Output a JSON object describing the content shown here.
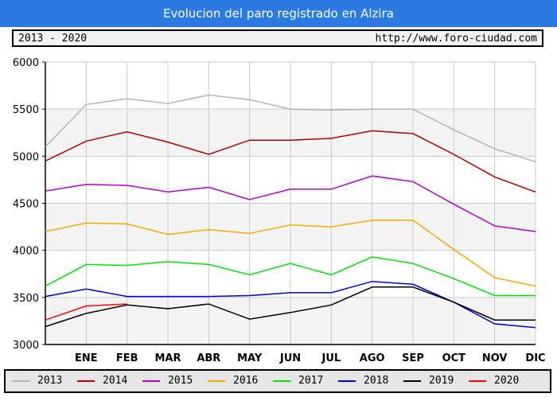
{
  "header": {
    "title": "Evolucion del paro registrado en Alzira",
    "range": "2013 - 2020",
    "url": "http://www.foro-ciudad.com"
  },
  "chart_data": {
    "type": "line",
    "title": "Evolucion del paro registrado en Alzira",
    "categories": [
      "",
      "ENE",
      "FEB",
      "MAR",
      "ABR",
      "MAY",
      "JUN",
      "JUL",
      "AGO",
      "SEP",
      "OCT",
      "NOV",
      "DIC"
    ],
    "ylim": [
      3000,
      6000
    ],
    "yticks": [
      3000,
      3500,
      4000,
      4500,
      5000,
      5500,
      6000
    ],
    "grid": true,
    "legend_position": "bottom",
    "series": [
      {
        "name": "2013",
        "color": "#b4b4b4",
        "values": [
          5100,
          5550,
          5610,
          5560,
          5650,
          5600,
          5500,
          5490,
          5500,
          5500,
          5280,
          5080,
          4940
        ]
      },
      {
        "name": "2014",
        "color": "#b00000",
        "values": [
          4950,
          5160,
          5260,
          5150,
          5020,
          5170,
          5170,
          5190,
          5270,
          5240,
          5020,
          4780,
          4620
        ]
      },
      {
        "name": "2015",
        "color": "#b400d2",
        "values": [
          4630,
          4700,
          4690,
          4620,
          4670,
          4540,
          4650,
          4650,
          4790,
          4730,
          4490,
          4260,
          4200
        ]
      },
      {
        "name": "2016",
        "color": "#ffa500",
        "values": [
          4200,
          4290,
          4280,
          4170,
          4220,
          4180,
          4270,
          4250,
          4320,
          4320,
          4010,
          3710,
          3620
        ]
      },
      {
        "name": "2017",
        "color": "#00e400",
        "values": [
          3620,
          3850,
          3840,
          3880,
          3850,
          3740,
          3860,
          3740,
          3930,
          3860,
          3700,
          3520,
          3520
        ]
      },
      {
        "name": "2018",
        "color": "#0000dc",
        "values": [
          3510,
          3590,
          3510,
          3510,
          3510,
          3520,
          3550,
          3550,
          3670,
          3640,
          3450,
          3220,
          3180
        ]
      },
      {
        "name": "2019",
        "color": "#000000",
        "values": [
          3190,
          3330,
          3420,
          3380,
          3430,
          3270,
          3340,
          3420,
          3610,
          3610,
          3450,
          3260,
          3260
        ]
      },
      {
        "name": "2020",
        "color": "#ff0000",
        "values": [
          3260,
          3410,
          3430,
          null,
          null,
          null,
          null,
          null,
          null,
          null,
          null,
          null,
          null
        ]
      }
    ]
  }
}
